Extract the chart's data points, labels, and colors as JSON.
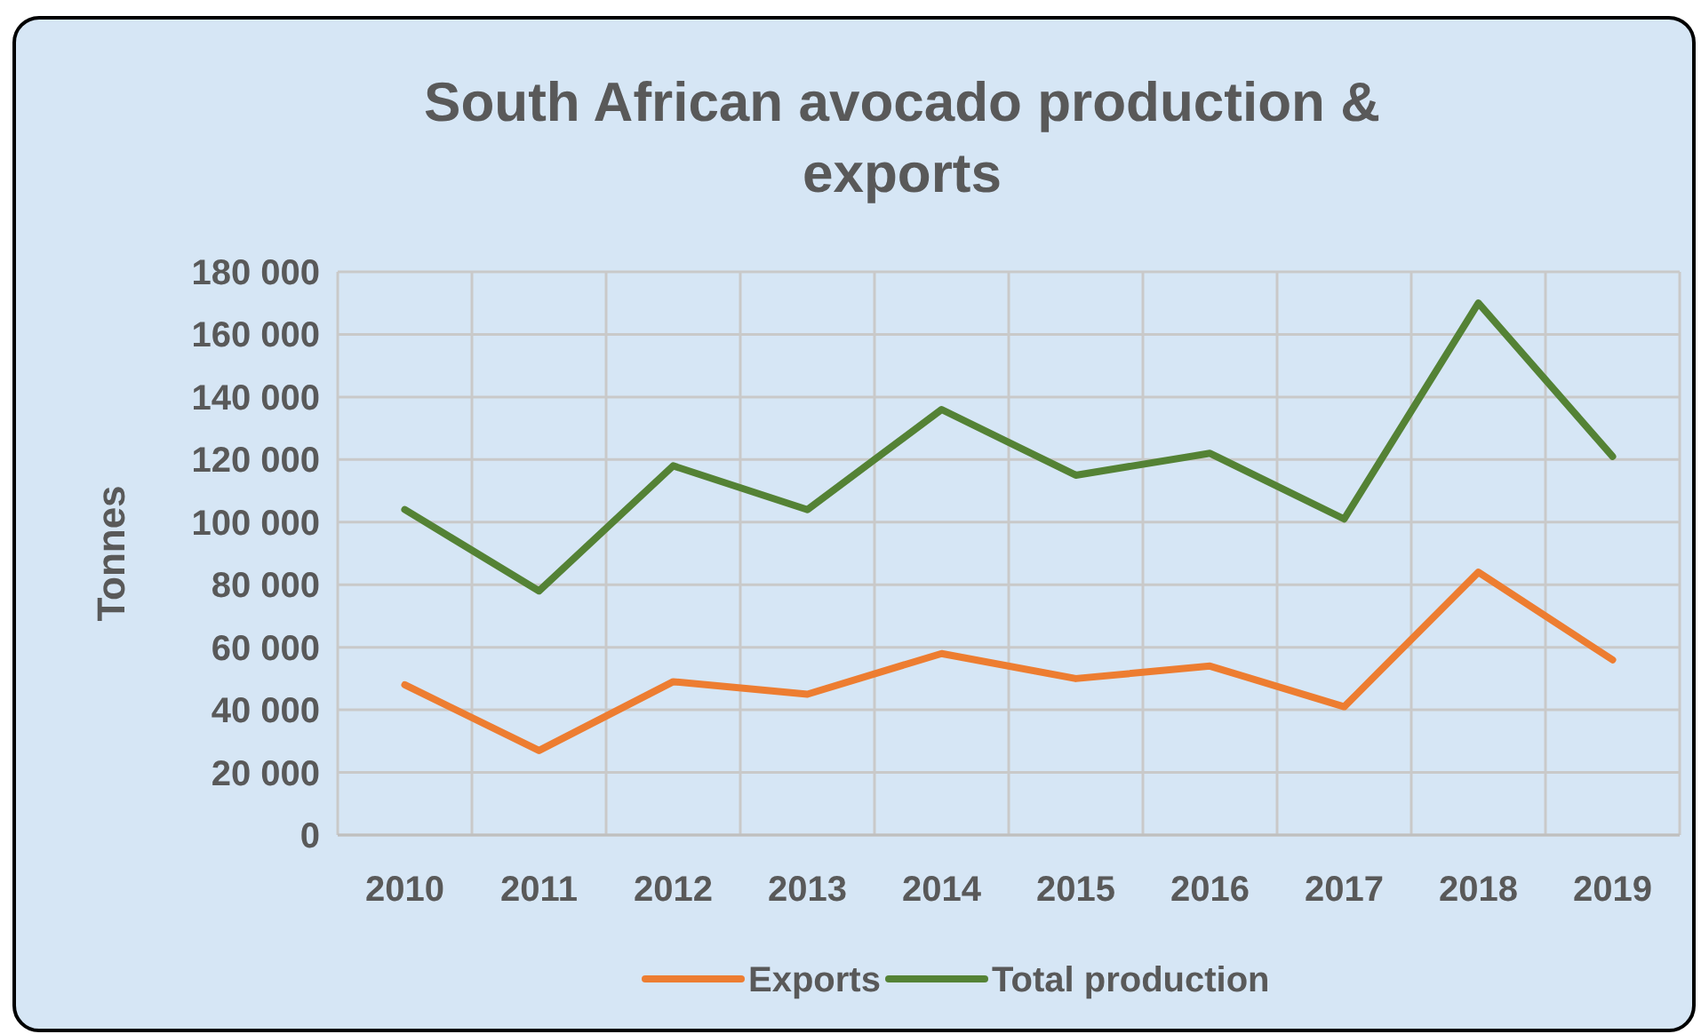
{
  "chart_data": {
    "type": "line",
    "title": "South African avocado production & exports",
    "ylabel": "Tonnes",
    "categories": [
      "2010",
      "2011",
      "2012",
      "2013",
      "2014",
      "2015",
      "2016",
      "2017",
      "2018",
      "2019"
    ],
    "series": [
      {
        "name": "Exports",
        "color": "#ed7d31",
        "values": [
          48000,
          27000,
          49000,
          45000,
          58000,
          50000,
          54000,
          41000,
          84000,
          56000
        ]
      },
      {
        "name": "Total production",
        "color": "#548235",
        "values": [
          104000,
          78000,
          118000,
          104000,
          136000,
          115000,
          122000,
          101000,
          170000,
          121000
        ]
      }
    ],
    "ylim": [
      0,
      180000
    ],
    "yticks": [
      {
        "value": 0,
        "label": "0"
      },
      {
        "value": 20000,
        "label": "20 000"
      },
      {
        "value": 40000,
        "label": "40 000"
      },
      {
        "value": 60000,
        "label": "60 000"
      },
      {
        "value": 80000,
        "label": "80 000"
      },
      {
        "value": 100000,
        "label": "100 000"
      },
      {
        "value": 120000,
        "label": "120 000"
      },
      {
        "value": 140000,
        "label": "140 000"
      },
      {
        "value": 160000,
        "label": "160 000"
      },
      {
        "value": 180000,
        "label": "180 000"
      }
    ],
    "grid": true,
    "legend": "bottom",
    "marker": "none",
    "line_style": "solid"
  }
}
